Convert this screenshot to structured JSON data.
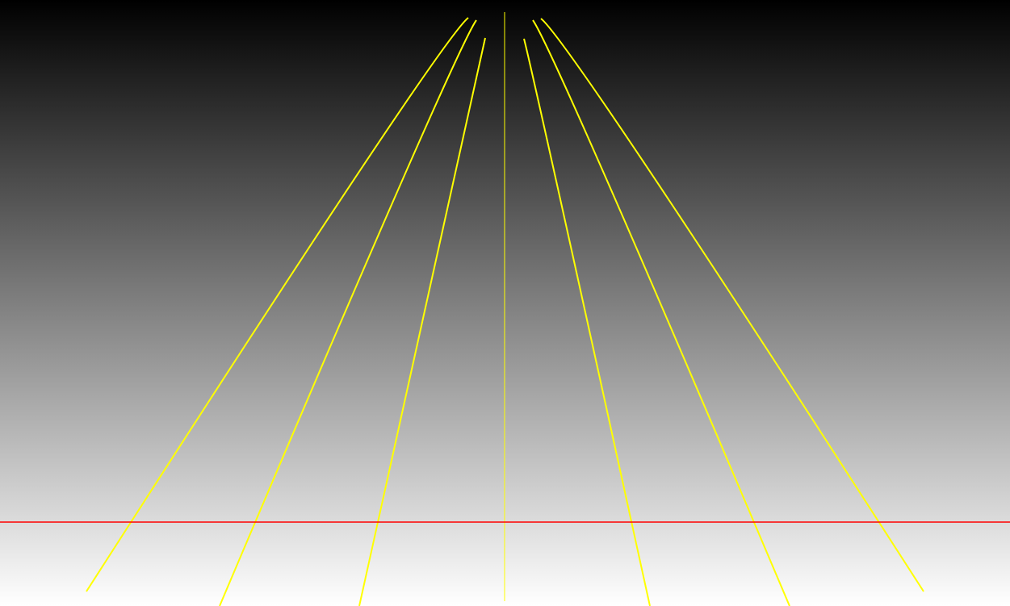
{
  "colors": {
    "background_top": "#000000",
    "background_bottom": "#ffffff",
    "ray": "#ffff00",
    "horizon": "#ff0000"
  },
  "elements": {
    "background": "vertical-gradient",
    "rays": "yellow-ray-lines",
    "horizon": "red-horizontal-line"
  }
}
